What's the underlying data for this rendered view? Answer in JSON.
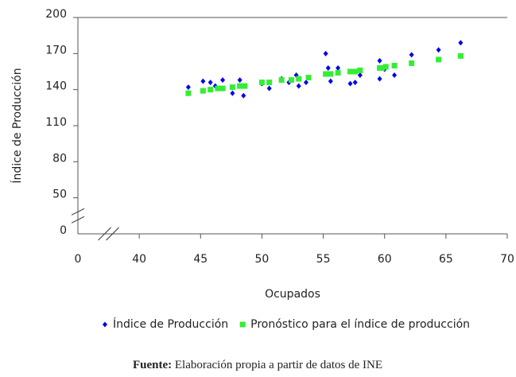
{
  "chart_data": {
    "type": "scatter",
    "x_label": "Ocupados",
    "y_label": "Índice de Producción",
    "xlim": [
      0,
      70
    ],
    "ylim": [
      0,
      200
    ],
    "xticks": [
      0,
      40,
      45,
      50,
      55,
      60,
      65,
      70
    ],
    "yticks": [
      0,
      50,
      80,
      110,
      140,
      170,
      200
    ],
    "axis_break": true,
    "legend": "bottom",
    "series": [
      {
        "name": "Índice de Producción",
        "color": "#0000ee",
        "marker": "diamond",
        "x": [
          44,
          45.2,
          45.8,
          46.2,
          46.8,
          47.6,
          48.2,
          48.5,
          50,
          50.6,
          51.6,
          52.2,
          52.8,
          53,
          53.6,
          55.2,
          55.4,
          55.6,
          56.2,
          57.2,
          57.6,
          58,
          59.6,
          59.6,
          60,
          60.8,
          62.2,
          64.4,
          66.2
        ],
        "values": [
          142,
          147,
          146,
          143,
          148,
          137,
          148,
          135,
          145,
          141,
          149,
          146,
          152,
          143,
          146,
          170,
          158,
          147,
          158,
          145,
          146,
          152,
          164,
          149,
          157,
          152,
          169,
          173,
          179
        ]
      },
      {
        "name": "Pronóstico para el índice de producción",
        "color": "#33ee33",
        "marker": "square",
        "x": [
          44,
          45.2,
          45.8,
          46.4,
          46.8,
          47.6,
          48.2,
          48.6,
          50,
          50.6,
          51.6,
          52.4,
          53,
          53.8,
          55.2,
          55.6,
          56.2,
          57.2,
          57.6,
          58,
          59.6,
          59.8,
          60.1,
          60.8,
          62.2,
          64.4,
          66.2
        ],
        "values": [
          137,
          139,
          140,
          141,
          141,
          142,
          143,
          143,
          146,
          146,
          148,
          148,
          149,
          150,
          153,
          153,
          154,
          155,
          155,
          156,
          158,
          158,
          159,
          160,
          162,
          165,
          168
        ]
      }
    ]
  },
  "source": {
    "label": "Fuente:",
    "text": "Elaboración propia a partir de datos de INE"
  }
}
